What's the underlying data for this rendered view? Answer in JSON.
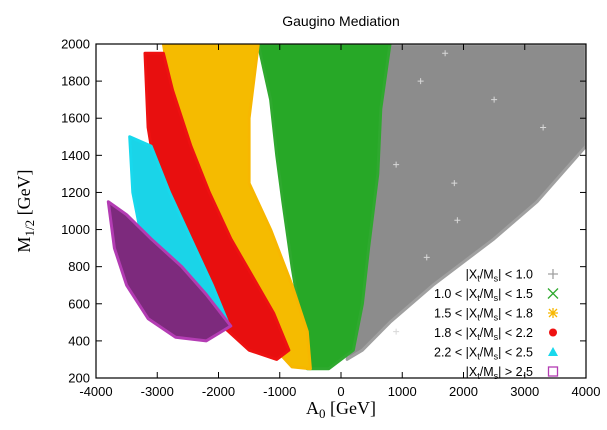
{
  "chart_data": {
    "type": "scatter",
    "title": "Gaugino Mediation",
    "xlabel": {
      "main": "A",
      "sub": "0",
      "unit": " [GeV]"
    },
    "ylabel": {
      "main": "M",
      "sub": "1/2",
      "unit": " [GeV]"
    },
    "xlim": [
      -4000,
      4000
    ],
    "ylim": [
      200,
      2000
    ],
    "xticks": [
      -4000,
      -3000,
      -2000,
      -1000,
      0,
      1000,
      2000,
      3000,
      4000
    ],
    "yticks": [
      200,
      400,
      600,
      800,
      1000,
      1200,
      1400,
      1600,
      1800,
      2000
    ],
    "grid": false,
    "legend_position": "bottom-right",
    "series": [
      {
        "name": "|Xt/Ms| < 1.0",
        "label": [
          "|X",
          "t",
          "/M",
          "s",
          "| < 1.0"
        ],
        "marker": "plus",
        "color": "#a0a0a0",
        "fill": "#8c8c8c",
        "region": [
          [
            250,
            2000
          ],
          [
            4000,
            2000
          ],
          [
            4000,
            1450
          ],
          [
            3200,
            1150
          ],
          [
            2500,
            950
          ],
          [
            1500,
            700
          ],
          [
            800,
            500
          ],
          [
            350,
            350
          ],
          [
            100,
            300
          ],
          [
            350,
            700
          ],
          [
            250,
            1100
          ],
          [
            550,
            1500
          ],
          [
            500,
            1800
          ]
        ]
      },
      {
        "name": "1.0 < |Xt/Ms| < 1.5",
        "label": [
          "1.0 < |X",
          "t",
          "/M",
          "s",
          "| < 1.5"
        ],
        "marker": "cross",
        "color": "#2fa92f",
        "fill": "#27a827",
        "region": [
          [
            -1350,
            2000
          ],
          [
            800,
            2000
          ],
          [
            650,
            1650
          ],
          [
            600,
            1300
          ],
          [
            450,
            900
          ],
          [
            350,
            600
          ],
          [
            200,
            350
          ],
          [
            -200,
            250
          ],
          [
            -550,
            250
          ],
          [
            -650,
            500
          ],
          [
            -800,
            800
          ],
          [
            -950,
            1150
          ],
          [
            -1050,
            1400
          ],
          [
            -1150,
            1700
          ]
        ]
      },
      {
        "name": "1.5 < |Xt/Ms| < 1.8",
        "label": [
          "1.5 < |X",
          "t",
          "/M",
          "s",
          "| < 1.8"
        ],
        "marker": "star",
        "color": "#f7b700",
        "fill": "#f5bb00",
        "region": [
          [
            -2900,
            2000
          ],
          [
            -1350,
            2000
          ],
          [
            -1500,
            1600
          ],
          [
            -1500,
            1250
          ],
          [
            -1150,
            1000
          ],
          [
            -800,
            700
          ],
          [
            -550,
            450
          ],
          [
            -500,
            250
          ],
          [
            -800,
            260
          ],
          [
            -1050,
            350
          ],
          [
            -1500,
            650
          ],
          [
            -2000,
            950
          ],
          [
            -2350,
            1200
          ],
          [
            -2650,
            1500
          ],
          [
            -2800,
            1800
          ]
        ]
      },
      {
        "name": "1.8 < |Xt/Ms| < 2.2",
        "label": [
          "1.8 < |X",
          "t",
          "/M",
          "s",
          "| < 2.2"
        ],
        "marker": "circle",
        "color": "#ee1111",
        "fill": "#e80f0f",
        "region": [
          [
            -3200,
            1950
          ],
          [
            -2900,
            1950
          ],
          [
            -2750,
            1750
          ],
          [
            -2450,
            1450
          ],
          [
            -2150,
            1200
          ],
          [
            -1800,
            950
          ],
          [
            -1450,
            750
          ],
          [
            -1100,
            550
          ],
          [
            -850,
            350
          ],
          [
            -1050,
            300
          ],
          [
            -1500,
            350
          ],
          [
            -2000,
            500
          ],
          [
            -2400,
            700
          ],
          [
            -2700,
            950
          ],
          [
            -3000,
            1250
          ],
          [
            -3150,
            1550
          ]
        ]
      },
      {
        "name": "2.2 < |Xt/Ms| < 2.5",
        "label": [
          "2.2 < |X",
          "t",
          "/M",
          "s",
          "| < 2.5"
        ],
        "marker": "triangle",
        "color": "#18d8ec",
        "fill": "#1ad4e8",
        "region": [
          [
            -3450,
            1500
          ],
          [
            -3100,
            1450
          ],
          [
            -2800,
            1200
          ],
          [
            -2450,
            950
          ],
          [
            -2100,
            700
          ],
          [
            -1850,
            500
          ],
          [
            -2100,
            430
          ],
          [
            -2600,
            520
          ],
          [
            -3000,
            700
          ],
          [
            -3250,
            950
          ],
          [
            -3400,
            1200
          ]
        ]
      },
      {
        "name": "|Xt/Ms| > 2.5",
        "label": [
          "|X",
          "t",
          "/M",
          "s",
          "| > 2.5"
        ],
        "marker": "square",
        "color": "#b33cb3",
        "fill": "#7d2a7d",
        "region": [
          [
            -3800,
            1150
          ],
          [
            -3500,
            1080
          ],
          [
            -3100,
            950
          ],
          [
            -2600,
            800
          ],
          [
            -2200,
            650
          ],
          [
            -1800,
            480
          ],
          [
            -2200,
            400
          ],
          [
            -2700,
            420
          ],
          [
            -3150,
            520
          ],
          [
            -3500,
            700
          ],
          [
            -3700,
            900
          ]
        ]
      }
    ]
  }
}
